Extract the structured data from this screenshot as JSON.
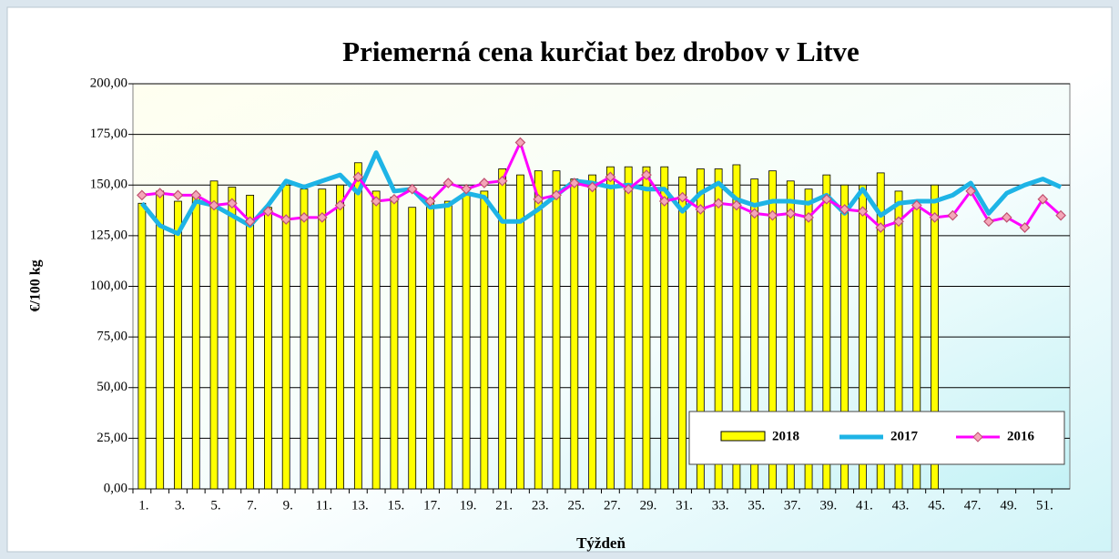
{
  "chart_data": {
    "type": "bar",
    "title": "Priemerná  cena kurčiat  bez drobov v Litve",
    "x_label": "Týždeň",
    "y_label": "€/100 kg",
    "categories": [
      "1.",
      null,
      "3.",
      null,
      "5.",
      null,
      "7.",
      null,
      "9.",
      null,
      "11.",
      null,
      "13.",
      null,
      "15.",
      null,
      "17.",
      null,
      "19.",
      null,
      "21.",
      null,
      "23.",
      null,
      "25.",
      null,
      "27.",
      null,
      "29.",
      null,
      "31.",
      null,
      "33.",
      null,
      "35.",
      null,
      "37.",
      null,
      "39.",
      null,
      "41.",
      null,
      "43.",
      null,
      "45.",
      null,
      "47.",
      null,
      "49.",
      null,
      "51.",
      null
    ],
    "series": [
      {
        "name": "2018",
        "type": "bar",
        "color": "#ffff00",
        "values": [
          141,
          147,
          142,
          145,
          152,
          149,
          145,
          139,
          150,
          148,
          148,
          150,
          161,
          147,
          144,
          139,
          143,
          142,
          145,
          147,
          158,
          155,
          157,
          157,
          153,
          155,
          159,
          159,
          159,
          159,
          154,
          158,
          158,
          160,
          153,
          157,
          152,
          148,
          155,
          150,
          150,
          156,
          147,
          140,
          150,
          null,
          null,
          null,
          null,
          null,
          null,
          null
        ]
      },
      {
        "name": "2017",
        "type": "line",
        "color": "#1eb4e6",
        "values": [
          141,
          130,
          126,
          142,
          140,
          135,
          130,
          140,
          152,
          149,
          152,
          155,
          146,
          166,
          147,
          148,
          139,
          140,
          146,
          144,
          132,
          132,
          138,
          145,
          152,
          151,
          149,
          150,
          148,
          148,
          137,
          146,
          151,
          143,
          140,
          142,
          142,
          141,
          145,
          136,
          148,
          135,
          141,
          142,
          142,
          145,
          151,
          136,
          146,
          150,
          153,
          149
        ]
      },
      {
        "name": "2016",
        "type": "line",
        "color": "#ff00ff",
        "marker": "diamond",
        "values": [
          145,
          146,
          145,
          145,
          140,
          141,
          132,
          137,
          133,
          134,
          134,
          140,
          154,
          142,
          143,
          148,
          142,
          151,
          148,
          151,
          152,
          171,
          143,
          145,
          151,
          149,
          154,
          148,
          155,
          142,
          144,
          138,
          141,
          140,
          136,
          135,
          136,
          134,
          143,
          138,
          137,
          129,
          132,
          140,
          134,
          135,
          147,
          132,
          134,
          129,
          143,
          135
        ]
      }
    ],
    "ylim": [
      0,
      200
    ],
    "yticks": [
      {
        "value": 0,
        "label": "0,00"
      },
      {
        "value": 25,
        "label": "25,00"
      },
      {
        "value": 50,
        "label": "50,00"
      },
      {
        "value": 75,
        "label": "75,00"
      },
      {
        "value": 100,
        "label": "100,00"
      },
      {
        "value": 125,
        "label": "125,00"
      },
      {
        "value": 150,
        "label": "150,00"
      },
      {
        "value": 175,
        "label": "175,00"
      },
      {
        "value": 200,
        "label": "200,00"
      }
    ],
    "grid": true
  }
}
